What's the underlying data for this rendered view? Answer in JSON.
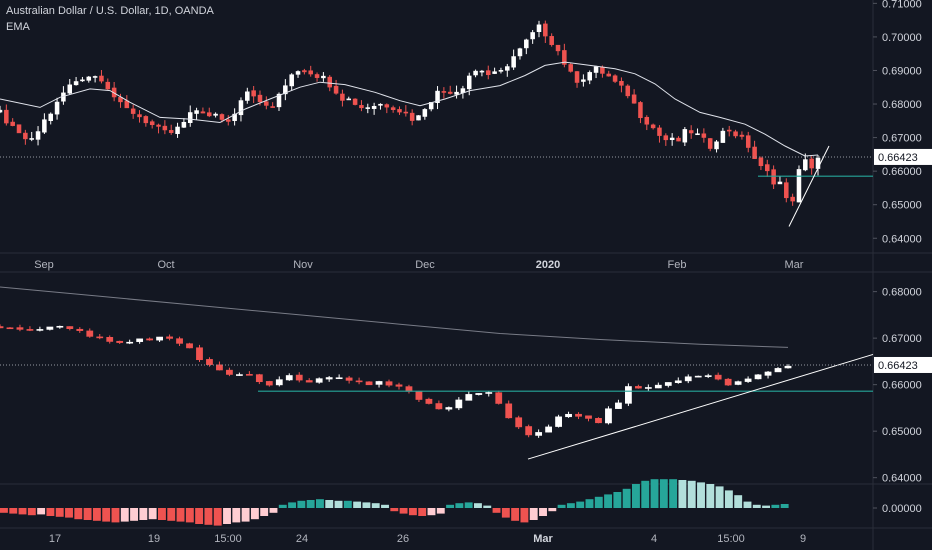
{
  "header": {
    "title": "Australian Dollar / U.S. Dollar, 1D, OANDA",
    "indicator": "EMA"
  },
  "colors": {
    "background": "#131722",
    "up": "#ffffff",
    "down": "#ef5350",
    "ema": "#e0e3eb",
    "ema_long": "#787b86",
    "support": "#26a69a",
    "hist_pos_strong": "#26a69a",
    "hist_pos_weak": "#b2dfdb",
    "hist_neg_strong": "#ef5350",
    "hist_neg_weak": "#ffcdd2",
    "price_tag": "#ffffff",
    "grid": "#2a2e39",
    "text": "#b2b5be"
  },
  "chart_data": [
    {
      "type": "candlestick",
      "title": "Australian Dollar / U.S. Dollar, 1D, OANDA",
      "series_label": "EMA",
      "ylim": [
        0.6365,
        0.711
      ],
      "y_ticks": [
        "0.71000",
        "0.70000",
        "0.69000",
        "0.68000",
        "0.67000",
        "0.66000",
        "0.65000",
        "0.64000"
      ],
      "x_ticks": [
        "Sep",
        "Oct",
        "Nov",
        "Dec",
        "2020",
        "Feb",
        "Mar"
      ],
      "last_price": "0.66423",
      "support_level": 0.6585,
      "trendline": {
        "from": [
          0.6435
        ],
        "to": [
          0.6675
        ]
      },
      "close_path": [
        [
          0,
          0.6775
        ],
        [
          14,
          0.672
        ],
        [
          20,
          0.6705
        ],
        [
          32,
          0.6688
        ],
        [
          43,
          0.6745
        ],
        [
          55,
          0.679
        ],
        [
          66,
          0.6845
        ],
        [
          80,
          0.6878
        ],
        [
          90,
          0.6885
        ],
        [
          103,
          0.6878
        ],
        [
          110,
          0.684
        ],
        [
          122,
          0.679
        ],
        [
          134,
          0.6775
        ],
        [
          146,
          0.675
        ],
        [
          160,
          0.672
        ],
        [
          168,
          0.671
        ],
        [
          180,
          0.673
        ],
        [
          190,
          0.6765
        ],
        [
          200,
          0.679
        ],
        [
          208,
          0.676
        ],
        [
          218,
          0.6765
        ],
        [
          230,
          0.6745
        ],
        [
          240,
          0.6815
        ],
        [
          250,
          0.685
        ],
        [
          260,
          0.68
        ],
        [
          272,
          0.679
        ],
        [
          282,
          0.6835
        ],
        [
          292,
          0.6895
        ],
        [
          302,
          0.6905
        ],
        [
          312,
          0.6895
        ],
        [
          322,
          0.688
        ],
        [
          332,
          0.6855
        ],
        [
          342,
          0.682
        ],
        [
          352,
          0.681
        ],
        [
          362,
          0.679
        ],
        [
          372,
          0.6795
        ],
        [
          382,
          0.68
        ],
        [
          392,
          0.6795
        ],
        [
          404,
          0.6775
        ],
        [
          416,
          0.675
        ],
        [
          428,
          0.6805
        ],
        [
          438,
          0.6835
        ],
        [
          450,
          0.684
        ],
        [
          460,
          0.684
        ],
        [
          470,
          0.689
        ],
        [
          480,
          0.6905
        ],
        [
          490,
          0.6885
        ],
        [
          500,
          0.689
        ],
        [
          510,
          0.693
        ],
        [
          520,
          0.696
        ],
        [
          530,
          0.7
        ],
        [
          540,
          0.703
        ],
        [
          548,
          0.7
        ],
        [
          556,
          0.697
        ],
        [
          564,
          0.6925
        ],
        [
          574,
          0.687
        ],
        [
          584,
          0.688
        ],
        [
          594,
          0.6905
        ],
        [
          606,
          0.689
        ],
        [
          616,
          0.686
        ],
        [
          628,
          0.683
        ],
        [
          640,
          0.677
        ],
        [
          650,
          0.674
        ],
        [
          660,
          0.6705
        ],
        [
          668,
          0.669
        ],
        [
          678,
          0.669
        ],
        [
          688,
          0.6725
        ],
        [
          698,
          0.6705
        ],
        [
          710,
          0.6675
        ],
        [
          720,
          0.671
        ],
        [
          730,
          0.6725
        ],
        [
          740,
          0.67
        ],
        [
          750,
          0.667
        ],
        [
          758,
          0.6615
        ],
        [
          766,
          0.66
        ],
        [
          774,
          0.657
        ],
        [
          782,
          0.6565
        ],
        [
          790,
          0.647
        ],
        [
          796,
          0.658
        ],
        [
          804,
          0.663
        ],
        [
          812,
          0.6615
        ],
        [
          818,
          0.664
        ]
      ],
      "ema_path": [
        [
          0,
          0.6815
        ],
        [
          40,
          0.679
        ],
        [
          60,
          0.682
        ],
        [
          90,
          0.6845
        ],
        [
          110,
          0.684
        ],
        [
          130,
          0.6805
        ],
        [
          160,
          0.676
        ],
        [
          190,
          0.6755
        ],
        [
          220,
          0.6745
        ],
        [
          245,
          0.6785
        ],
        [
          270,
          0.6815
        ],
        [
          300,
          0.685
        ],
        [
          320,
          0.6865
        ],
        [
          345,
          0.6858
        ],
        [
          375,
          0.6835
        ],
        [
          400,
          0.681
        ],
        [
          420,
          0.6795
        ],
        [
          445,
          0.6815
        ],
        [
          470,
          0.684
        ],
        [
          500,
          0.6855
        ],
        [
          525,
          0.6885
        ],
        [
          545,
          0.6915
        ],
        [
          565,
          0.6925
        ],
        [
          590,
          0.6915
        ],
        [
          615,
          0.6905
        ],
        [
          635,
          0.689
        ],
        [
          655,
          0.686
        ],
        [
          675,
          0.6815
        ],
        [
          700,
          0.6775
        ],
        [
          720,
          0.676
        ],
        [
          745,
          0.674
        ],
        [
          765,
          0.671
        ],
        [
          785,
          0.6675
        ],
        [
          805,
          0.6645
        ],
        [
          818,
          0.6648
        ]
      ]
    },
    {
      "type": "candlestick",
      "ylim": [
        0.6395,
        0.6825
      ],
      "y_ticks": [
        "0.68000",
        "0.67000",
        "0.66000",
        "0.65000",
        "0.64000"
      ],
      "x_ticks": [
        "17",
        "19",
        "15:00",
        "24",
        "26",
        "Mar",
        "4",
        "15:00",
        "9"
      ],
      "last_price": "0.66423",
      "support_level": 0.6586,
      "trendline": {
        "from": [
          0.644
        ],
        "to": [
          0.6665
        ]
      },
      "close_path": [
        [
          0,
          0.6725
        ],
        [
          10,
          0.6722
        ],
        [
          20,
          0.6718
        ],
        [
          30,
          0.672
        ],
        [
          42,
          0.6722
        ],
        [
          52,
          0.6725
        ],
        [
          62,
          0.6725
        ],
        [
          72,
          0.672
        ],
        [
          82,
          0.6715
        ],
        [
          92,
          0.6705
        ],
        [
          102,
          0.67
        ],
        [
          112,
          0.6695
        ],
        [
          122,
          0.669
        ],
        [
          132,
          0.6695
        ],
        [
          142,
          0.6695
        ],
        [
          152,
          0.6697
        ],
        [
          162,
          0.67
        ],
        [
          172,
          0.6695
        ],
        [
          182,
          0.6685
        ],
        [
          192,
          0.6675
        ],
        [
          200,
          0.6655
        ],
        [
          210,
          0.6645
        ],
        [
          220,
          0.663
        ],
        [
          230,
          0.6625
        ],
        [
          240,
          0.6622
        ],
        [
          250,
          0.6618
        ],
        [
          260,
          0.6605
        ],
        [
          270,
          0.66
        ],
        [
          280,
          0.6612
        ],
        [
          290,
          0.662
        ],
        [
          300,
          0.661
        ],
        [
          310,
          0.6605
        ],
        [
          320,
          0.661
        ],
        [
          330,
          0.6615
        ],
        [
          340,
          0.6612
        ],
        [
          350,
          0.661
        ],
        [
          360,
          0.6608
        ],
        [
          370,
          0.6602
        ],
        [
          380,
          0.6605
        ],
        [
          390,
          0.66
        ],
        [
          400,
          0.6595
        ],
        [
          410,
          0.6585
        ],
        [
          420,
          0.6565
        ],
        [
          430,
          0.6555
        ],
        [
          440,
          0.655
        ],
        [
          450,
          0.6555
        ],
        [
          460,
          0.657
        ],
        [
          470,
          0.658
        ],
        [
          480,
          0.6585
        ],
        [
          490,
          0.658
        ],
        [
          500,
          0.656
        ],
        [
          510,
          0.6525
        ],
        [
          520,
          0.6505
        ],
        [
          528,
          0.649
        ],
        [
          538,
          0.6495
        ],
        [
          548,
          0.651
        ],
        [
          558,
          0.653
        ],
        [
          568,
          0.654
        ],
        [
          578,
          0.6535
        ],
        [
          588,
          0.6525
        ],
        [
          598,
          0.652
        ],
        [
          608,
          0.6545
        ],
        [
          618,
          0.656
        ],
        [
          628,
          0.6595
        ],
        [
          638,
          0.6595
        ],
        [
          648,
          0.6595
        ],
        [
          658,
          0.66
        ],
        [
          668,
          0.6605
        ],
        [
          678,
          0.661
        ],
        [
          688,
          0.6615
        ],
        [
          698,
          0.6615
        ],
        [
          708,
          0.662
        ],
        [
          718,
          0.6615
        ],
        [
          728,
          0.66
        ],
        [
          738,
          0.6605
        ],
        [
          748,
          0.661
        ],
        [
          758,
          0.662
        ],
        [
          768,
          0.663
        ],
        [
          778,
          0.6635
        ],
        [
          788,
          0.664
        ]
      ],
      "ema_long_path": [
        [
          0,
          0.681
        ],
        [
          100,
          0.679
        ],
        [
          200,
          0.677
        ],
        [
          300,
          0.675
        ],
        [
          400,
          0.673
        ],
        [
          500,
          0.671
        ],
        [
          600,
          0.6697
        ],
        [
          700,
          0.6687
        ],
        [
          788,
          0.668
        ]
      ],
      "indicator": {
        "type": "histogram",
        "y_ticks": [
          "0.00000"
        ],
        "values": [
          -0.3,
          -0.35,
          -0.4,
          -0.45,
          -0.4,
          -0.5,
          -0.55,
          -0.6,
          -0.7,
          -0.75,
          -0.8,
          -0.85,
          -0.9,
          -0.85,
          -0.8,
          -0.75,
          -0.7,
          -0.75,
          -0.8,
          -0.85,
          -0.9,
          -1.0,
          -1.05,
          -1.1,
          -1.0,
          -0.9,
          -0.85,
          -0.7,
          -0.5,
          -0.3,
          0.2,
          0.35,
          0.45,
          0.5,
          0.55,
          0.5,
          0.45,
          0.45,
          0.4,
          0.35,
          0.3,
          0.2,
          -0.2,
          -0.35,
          -0.45,
          -0.5,
          -0.45,
          -0.35,
          0.2,
          0.3,
          0.35,
          0.3,
          0.15,
          -0.3,
          -0.6,
          -0.8,
          -0.9,
          -0.75,
          -0.5,
          -0.2,
          0.2,
          0.3,
          0.4,
          0.55,
          0.7,
          0.85,
          1.0,
          1.2,
          1.5,
          1.7,
          1.8,
          1.8,
          1.8,
          1.75,
          1.7,
          1.6,
          1.5,
          1.35,
          1.1,
          0.8,
          0.4,
          0.2,
          0.15,
          0.2,
          0.25
        ]
      }
    }
  ]
}
